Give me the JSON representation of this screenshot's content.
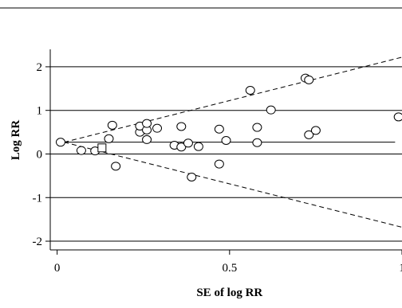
{
  "chart_data": {
    "type": "scatter",
    "title": "",
    "xlabel": "SE of log RR",
    "ylabel": "Log RR",
    "xlim": [
      -0.02,
      1.0
    ],
    "ylim": [
      -2.2,
      2.4
    ],
    "x_ticks": [
      0,
      0.5,
      1
    ],
    "x_tick_labels": [
      "0",
      "0.5",
      "1"
    ],
    "y_ticks": [
      2,
      1,
      0,
      -1,
      -2
    ],
    "y_tick_labels": [
      "2",
      "1",
      "0",
      "-1",
      "-2"
    ],
    "grid": "horizontal",
    "pooled_estimate": 0.27,
    "pooled_line": {
      "x": [
        0.02,
        0.98
      ],
      "y": [
        0.27,
        0.27
      ]
    },
    "funnel_upper": {
      "x": [
        0.02,
        1.0
      ],
      "y": [
        0.27,
        2.22
      ]
    },
    "funnel_lower": {
      "x": [
        0.02,
        1.0
      ],
      "y": [
        0.27,
        -1.68
      ]
    },
    "series": [
      {
        "marker": "circle",
        "points": [
          [
            0.01,
            0.27
          ],
          [
            0.07,
            0.08
          ],
          [
            0.11,
            0.07
          ],
          [
            0.15,
            0.35
          ],
          [
            0.16,
            0.66
          ],
          [
            0.17,
            -0.28
          ],
          [
            0.24,
            0.5
          ],
          [
            0.24,
            0.64
          ],
          [
            0.26,
            0.55
          ],
          [
            0.26,
            0.7
          ],
          [
            0.26,
            0.33
          ],
          [
            0.29,
            0.59
          ],
          [
            0.34,
            0.2
          ],
          [
            0.36,
            0.16
          ],
          [
            0.36,
            0.63
          ],
          [
            0.38,
            0.25
          ],
          [
            0.39,
            -0.53
          ],
          [
            0.41,
            0.17
          ],
          [
            0.47,
            0.57
          ],
          [
            0.47,
            -0.23
          ],
          [
            0.49,
            0.31
          ],
          [
            0.56,
            1.46
          ],
          [
            0.58,
            0.26
          ],
          [
            0.58,
            0.61
          ],
          [
            0.62,
            1.01
          ],
          [
            0.72,
            1.74
          ],
          [
            0.73,
            1.7
          ],
          [
            0.73,
            0.44
          ],
          [
            0.75,
            0.54
          ],
          [
            0.99,
            0.85
          ]
        ]
      },
      {
        "marker": "square",
        "points": [
          [
            0.13,
            0.14
          ]
        ]
      }
    ]
  }
}
